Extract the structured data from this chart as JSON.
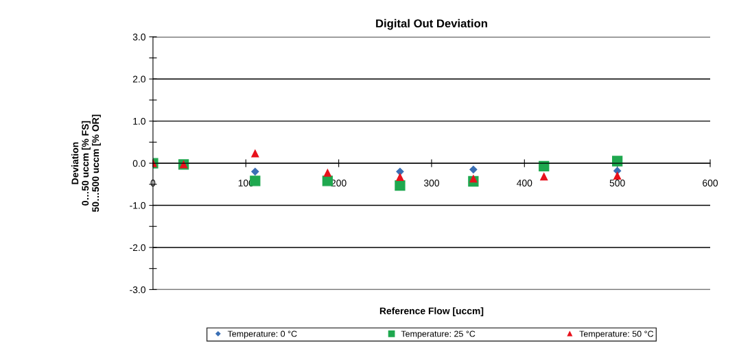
{
  "chart_data": {
    "type": "scatter",
    "title": "Digital Out Deviation",
    "xlabel": "Reference Flow [uccm]",
    "ylabel": "Deviation\n0…50 uccm [% FS]\n50…500 uccm [% OR]",
    "x": [
      0,
      33,
      110,
      188,
      266,
      345,
      421,
      500
    ],
    "series": [
      {
        "name": "Temperature: 0 °C",
        "color": "#3a6fb5",
        "marker": "diamond",
        "values": [
          null,
          null,
          -0.2,
          null,
          -0.2,
          -0.15,
          null,
          -0.18
        ]
      },
      {
        "name": "Temperature: 25 °C",
        "color": "#1fa84f",
        "marker": "square",
        "values": [
          0,
          -0.03,
          -0.42,
          -0.42,
          -0.53,
          -0.43,
          -0.07,
          0.05
        ]
      },
      {
        "name": "Temperature: 50 °C",
        "color": "#e8121c",
        "marker": "triangle",
        "values": [
          0,
          -0.03,
          0.23,
          -0.23,
          -0.33,
          -0.37,
          -0.32,
          -0.3
        ]
      }
    ],
    "xlim": [
      0,
      600
    ],
    "xticks": [
      0,
      100,
      200,
      300,
      400,
      500,
      600
    ],
    "ylim": [
      -3.0,
      3.0
    ],
    "yticks": [
      {
        "value": -3,
        "label": "-3.0"
      },
      {
        "value": -2.5,
        "label": null
      },
      {
        "value": -2,
        "label": "-2.0"
      },
      {
        "value": -1.5,
        "label": null
      },
      {
        "value": -1,
        "label": "-1.0"
      },
      {
        "value": -0.5,
        "label": null
      },
      {
        "value": 0,
        "label": "0.0"
      },
      {
        "value": 0.5,
        "label": null
      },
      {
        "value": 1,
        "label": "1.0"
      },
      {
        "value": 1.5,
        "label": null
      },
      {
        "value": 2,
        "label": "2.0"
      },
      {
        "value": 2.5,
        "label": null
      },
      {
        "value": 3,
        "label": "3.0"
      }
    ],
    "grid": "y",
    "legend": "bottom"
  }
}
